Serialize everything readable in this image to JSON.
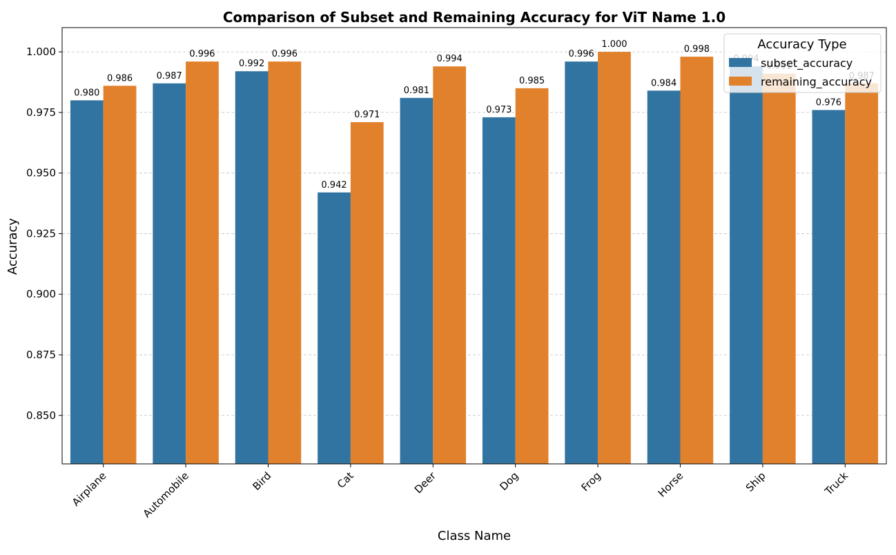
{
  "chart_data": {
    "type": "bar",
    "title": "Comparison of Subset and Remaining Accuracy for ViT Name 1.0",
    "xlabel": "Class Name",
    "ylabel": "Accuracy",
    "categories": [
      "Airplane",
      "Automobile",
      "Bird",
      "Cat",
      "Deer",
      "Dog",
      "Frog",
      "Horse",
      "Ship",
      "Truck"
    ],
    "series": [
      {
        "name": "subset_accuracy",
        "color": "#3274a1",
        "values": [
          0.98,
          0.987,
          0.992,
          0.942,
          0.981,
          0.973,
          0.996,
          0.984,
          0.994,
          0.976
        ],
        "labels": [
          "0.980",
          "0.987",
          "0.992",
          "0.942",
          "0.981",
          "0.973",
          "0.996",
          "0.984",
          "0.994",
          "0.976"
        ]
      },
      {
        "name": "remaining_accuracy",
        "color": "#e1812c",
        "values": [
          0.986,
          0.996,
          0.996,
          0.971,
          0.994,
          0.985,
          1.0,
          0.998,
          0.991,
          0.987
        ],
        "labels": [
          "0.986",
          "0.996",
          "0.996",
          "0.971",
          "0.994",
          "0.985",
          "1.000",
          "0.998",
          "0.991",
          "0.987"
        ]
      }
    ],
    "ylim": [
      0.83,
      1.01
    ],
    "yticks": [
      0.85,
      0.875,
      0.9,
      0.925,
      0.95,
      0.975,
      1.0
    ],
    "ytick_labels": [
      "0.850",
      "0.875",
      "0.900",
      "0.925",
      "0.950",
      "0.975",
      "1.000"
    ],
    "grid": "y-dashed",
    "legend": {
      "title": "Accuracy Type",
      "placement": "top-right"
    },
    "xtick_rotation": "45"
  }
}
